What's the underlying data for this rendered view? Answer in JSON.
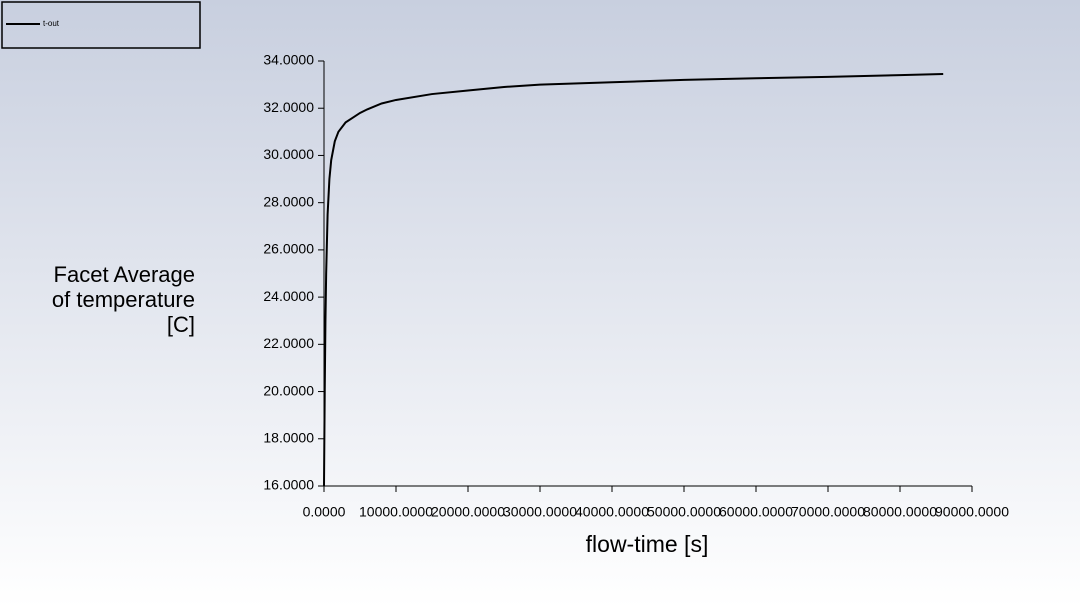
{
  "chart_data": {
    "type": "line",
    "xlabel": "flow-time [s]",
    "ylabel": "Facet Average of temperature [C]",
    "x": [
      0,
      100,
      200,
      300,
      500,
      750,
      1000,
      1500,
      2000,
      3000,
      4000,
      5000,
      6000,
      8000,
      10000,
      15000,
      20000,
      25000,
      30000,
      40000,
      50000,
      60000,
      70000,
      80000,
      86000
    ],
    "series": [
      {
        "name": "t-out",
        "color": "#000000",
        "values": [
          16,
          20,
          23,
          25,
          27.5,
          29,
          29.8,
          30.6,
          31,
          31.4,
          31.6,
          31.8,
          31.95,
          32.2,
          32.35,
          32.6,
          32.75,
          32.9,
          33.0,
          33.1,
          33.2,
          33.27,
          33.33,
          33.4,
          33.45
        ]
      }
    ],
    "xlim": [
      0,
      90000
    ],
    "ylim": [
      16,
      34
    ],
    "xticks": [
      {
        "value": 0,
        "label": "0.0000"
      },
      {
        "value": 10000,
        "label": "10000.0000"
      },
      {
        "value": 20000,
        "label": "20000.0000"
      },
      {
        "value": 30000,
        "label": "30000.0000"
      },
      {
        "value": 40000,
        "label": "40000.0000"
      },
      {
        "value": 50000,
        "label": "50000.0000"
      },
      {
        "value": 60000,
        "label": "60000.0000"
      },
      {
        "value": 70000,
        "label": "70000.0000"
      },
      {
        "value": 80000,
        "label": "80000.0000"
      },
      {
        "value": 90000,
        "label": "90000.0000"
      }
    ],
    "yticks": [
      {
        "value": 16,
        "label": "16.0000"
      },
      {
        "value": 18,
        "label": "18.0000"
      },
      {
        "value": 20,
        "label": "20.0000"
      },
      {
        "value": 22,
        "label": "22.0000"
      },
      {
        "value": 24,
        "label": "24.0000"
      },
      {
        "value": 26,
        "label": "26.0000"
      },
      {
        "value": 28,
        "label": "28.0000"
      },
      {
        "value": 30,
        "label": "30.0000"
      },
      {
        "value": 32,
        "label": "32.0000"
      },
      {
        "value": 34,
        "label": "34.0000"
      }
    ],
    "legend": "top-left"
  }
}
